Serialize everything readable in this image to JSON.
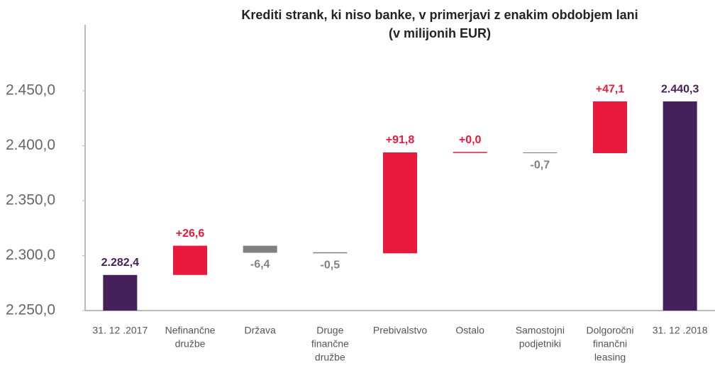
{
  "chart_data": {
    "type": "waterfall",
    "title": [
      "Krediti strank, ki niso banke, v primerjavi z enakim obdobjem lani",
      "(v milijonih EUR)"
    ],
    "categories": [
      [
        "31. 12 .2017"
      ],
      [
        "Nefinančne",
        "družbe"
      ],
      [
        "Država"
      ],
      [
        "Druge",
        "finančne",
        "družbe"
      ],
      [
        "Prebivalstvo"
      ],
      [
        "Ostalo"
      ],
      [
        "Samostojni",
        "podjetniki"
      ],
      [
        "Dolgoročni",
        "finančni",
        "leasing"
      ],
      [
        "31. 12 .2018"
      ]
    ],
    "values": [
      2282.4,
      26.6,
      -6.4,
      -0.5,
      91.8,
      0.0,
      -0.7,
      47.1,
      2440.3
    ],
    "value_labels": [
      "2.282,4",
      "+26,6",
      "-6,4",
      "-0,5",
      "+91,8",
      "+0,0",
      "-0,7",
      "+47,1",
      "2.440,3"
    ],
    "total_color": "#45205a",
    "increase_color": "#e8193c",
    "decrease_color": "#808080",
    "ylim": [
      2250,
      2510
    ],
    "yticks": [
      {
        "value": 2250,
        "label": "2.250,0"
      },
      {
        "value": 2300,
        "label": "2.300,0"
      },
      {
        "value": 2350,
        "label": "2.350,0"
      },
      {
        "value": 2400,
        "label": "2.400,0"
      },
      {
        "value": 2450,
        "label": "2.450,0"
      }
    ],
    "grid": false
  }
}
